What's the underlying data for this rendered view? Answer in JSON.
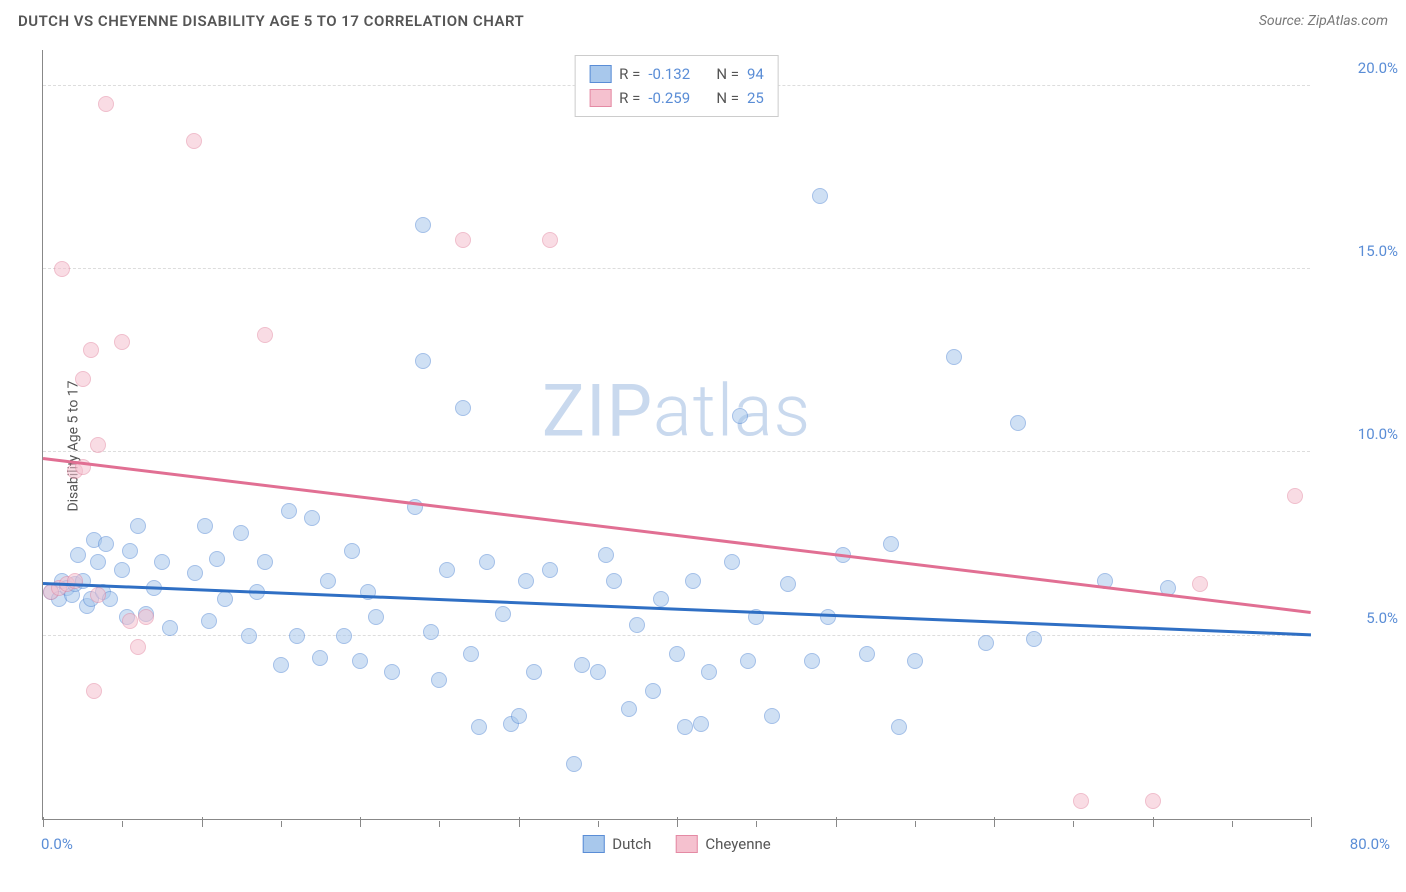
{
  "header": {
    "title": "DUTCH VS CHEYENNE DISABILITY AGE 5 TO 17 CORRELATION CHART",
    "source_prefix": "Source: ",
    "source_name": "ZipAtlas.com"
  },
  "chart": {
    "type": "scatter",
    "ylabel": "Disability Age 5 to 17",
    "watermark_bold": "ZIP",
    "watermark_light": "atlas",
    "background_color": "#ffffff",
    "grid_color": "#dddddd",
    "axis_color": "#888888",
    "xlim": [
      0,
      80
    ],
    "ylim": [
      0,
      21
    ],
    "xticks_major": [
      0,
      10,
      20,
      30,
      40,
      50,
      60,
      70,
      80
    ],
    "xticks_minor": [
      5,
      15,
      25,
      35,
      45,
      55,
      65,
      75
    ],
    "yticks": [
      {
        "value": 5.0,
        "label": "5.0%"
      },
      {
        "value": 10.0,
        "label": "10.0%"
      },
      {
        "value": 15.0,
        "label": "15.0%"
      },
      {
        "value": 20.0,
        "label": "20.0%"
      }
    ],
    "x_origin_label": "0.0%",
    "x_max_label": "80.0%",
    "marker_radius": 8,
    "marker_opacity": 0.55,
    "series": [
      {
        "name": "Dutch",
        "fill": "#a8c8ec",
        "stroke": "#5a8dd6",
        "trend_color": "#2f6fc4",
        "R_label": "R =",
        "R_value": "-0.132",
        "N_label": "N =",
        "N_value": "94",
        "trend": {
          "x1": 0,
          "y1": 6.4,
          "x2": 80,
          "y2": 5.0
        },
        "data": [
          {
            "x": 0.5,
            "y": 6.2
          },
          {
            "x": 1,
            "y": 6.0
          },
          {
            "x": 1.2,
            "y": 6.5
          },
          {
            "x": 1.5,
            "y": 6.3
          },
          {
            "x": 1.8,
            "y": 6.1
          },
          {
            "x": 2.0,
            "y": 6.4
          },
          {
            "x": 2.2,
            "y": 7.2
          },
          {
            "x": 2.5,
            "y": 6.5
          },
          {
            "x": 2.8,
            "y": 5.8
          },
          {
            "x": 3.0,
            "y": 6.0
          },
          {
            "x": 3.2,
            "y": 7.6
          },
          {
            "x": 3.5,
            "y": 7.0
          },
          {
            "x": 3.8,
            "y": 6.2
          },
          {
            "x": 4.0,
            "y": 7.5
          },
          {
            "x": 4.2,
            "y": 6.0
          },
          {
            "x": 5.0,
            "y": 6.8
          },
          {
            "x": 5.3,
            "y": 5.5
          },
          {
            "x": 5.5,
            "y": 7.3
          },
          {
            "x": 6.0,
            "y": 8.0
          },
          {
            "x": 6.5,
            "y": 5.6
          },
          {
            "x": 7.0,
            "y": 6.3
          },
          {
            "x": 7.5,
            "y": 7.0
          },
          {
            "x": 8.0,
            "y": 5.2
          },
          {
            "x": 9.6,
            "y": 6.7
          },
          {
            "x": 10.2,
            "y": 8.0
          },
          {
            "x": 10.5,
            "y": 5.4
          },
          {
            "x": 11.0,
            "y": 7.1
          },
          {
            "x": 11.5,
            "y": 6.0
          },
          {
            "x": 12.5,
            "y": 7.8
          },
          {
            "x": 13.0,
            "y": 5.0
          },
          {
            "x": 13.5,
            "y": 6.2
          },
          {
            "x": 14.0,
            "y": 7.0
          },
          {
            "x": 15.0,
            "y": 4.2
          },
          {
            "x": 15.5,
            "y": 8.4
          },
          {
            "x": 16.0,
            "y": 5.0
          },
          {
            "x": 17.0,
            "y": 8.2
          },
          {
            "x": 17.5,
            "y": 4.4
          },
          {
            "x": 18.0,
            "y": 6.5
          },
          {
            "x": 19.0,
            "y": 5.0
          },
          {
            "x": 19.5,
            "y": 7.3
          },
          {
            "x": 20.0,
            "y": 4.3
          },
          {
            "x": 20.5,
            "y": 6.2
          },
          {
            "x": 21.0,
            "y": 5.5
          },
          {
            "x": 22.0,
            "y": 4.0
          },
          {
            "x": 23.5,
            "y": 8.5
          },
          {
            "x": 24.0,
            "y": 16.2
          },
          {
            "x": 24.0,
            "y": 12.5
          },
          {
            "x": 24.5,
            "y": 5.1
          },
          {
            "x": 25.0,
            "y": 3.8
          },
          {
            "x": 25.5,
            "y": 6.8
          },
          {
            "x": 26.5,
            "y": 11.2
          },
          {
            "x": 27.0,
            "y": 4.5
          },
          {
            "x": 27.5,
            "y": 2.5
          },
          {
            "x": 28.0,
            "y": 7.0
          },
          {
            "x": 29.5,
            "y": 2.6
          },
          {
            "x": 29.0,
            "y": 5.6
          },
          {
            "x": 30.0,
            "y": 2.8
          },
          {
            "x": 30.5,
            "y": 6.5
          },
          {
            "x": 31.0,
            "y": 4.0
          },
          {
            "x": 32.0,
            "y": 6.8
          },
          {
            "x": 33.5,
            "y": 1.5
          },
          {
            "x": 34.0,
            "y": 4.2
          },
          {
            "x": 35.0,
            "y": 4.0
          },
          {
            "x": 35.5,
            "y": 7.2
          },
          {
            "x": 36.0,
            "y": 6.5
          },
          {
            "x": 37.0,
            "y": 3.0
          },
          {
            "x": 37.5,
            "y": 5.3
          },
          {
            "x": 38.5,
            "y": 3.5
          },
          {
            "x": 39.0,
            "y": 6.0
          },
          {
            "x": 40.0,
            "y": 4.5
          },
          {
            "x": 40.5,
            "y": 2.5
          },
          {
            "x": 41.0,
            "y": 6.5
          },
          {
            "x": 41.5,
            "y": 2.6
          },
          {
            "x": 42.0,
            "y": 4.0
          },
          {
            "x": 43.5,
            "y": 7.0
          },
          {
            "x": 44.0,
            "y": 11.0
          },
          {
            "x": 44.5,
            "y": 4.3
          },
          {
            "x": 45.0,
            "y": 5.5
          },
          {
            "x": 46.0,
            "y": 2.8
          },
          {
            "x": 47.0,
            "y": 6.4
          },
          {
            "x": 48.5,
            "y": 4.3
          },
          {
            "x": 49.0,
            "y": 17.0
          },
          {
            "x": 49.5,
            "y": 5.5
          },
          {
            "x": 50.5,
            "y": 7.2
          },
          {
            "x": 52.0,
            "y": 4.5
          },
          {
            "x": 53.5,
            "y": 7.5
          },
          {
            "x": 54.0,
            "y": 2.5
          },
          {
            "x": 55.0,
            "y": 4.3
          },
          {
            "x": 57.5,
            "y": 12.6
          },
          {
            "x": 59.5,
            "y": 4.8
          },
          {
            "x": 61.5,
            "y": 10.8
          },
          {
            "x": 62.5,
            "y": 4.9
          },
          {
            "x": 67.0,
            "y": 6.5
          },
          {
            "x": 71.0,
            "y": 6.3
          }
        ]
      },
      {
        "name": "Cheyenne",
        "fill": "#f5c1cf",
        "stroke": "#e48aa4",
        "trend_color": "#e16f93",
        "R_label": "R =",
        "R_value": "-0.259",
        "N_label": "N =",
        "N_value": "25",
        "trend": {
          "x1": 0,
          "y1": 9.8,
          "x2": 80,
          "y2": 5.6
        },
        "data": [
          {
            "x": 0.5,
            "y": 6.2
          },
          {
            "x": 1.0,
            "y": 6.3
          },
          {
            "x": 1.2,
            "y": 15.0
          },
          {
            "x": 1.5,
            "y": 6.4
          },
          {
            "x": 2.0,
            "y": 9.5
          },
          {
            "x": 2.0,
            "y": 6.5
          },
          {
            "x": 2.5,
            "y": 12.0
          },
          {
            "x": 2.5,
            "y": 9.6
          },
          {
            "x": 3.0,
            "y": 12.8
          },
          {
            "x": 3.2,
            "y": 3.5
          },
          {
            "x": 3.5,
            "y": 10.2
          },
          {
            "x": 3.5,
            "y": 6.1
          },
          {
            "x": 4.0,
            "y": 19.5
          },
          {
            "x": 5.0,
            "y": 13.0
          },
          {
            "x": 5.5,
            "y": 5.4
          },
          {
            "x": 6.0,
            "y": 4.7
          },
          {
            "x": 6.5,
            "y": 5.5
          },
          {
            "x": 9.5,
            "y": 18.5
          },
          {
            "x": 14.0,
            "y": 13.2
          },
          {
            "x": 26.5,
            "y": 15.8
          },
          {
            "x": 32.0,
            "y": 15.8
          },
          {
            "x": 65.5,
            "y": 0.5
          },
          {
            "x": 70.0,
            "y": 0.5
          },
          {
            "x": 73.0,
            "y": 6.4
          },
          {
            "x": 79.0,
            "y": 8.8
          }
        ]
      }
    ],
    "legend_bottom": [
      {
        "label": "Dutch",
        "fill": "#a8c8ec",
        "stroke": "#5a8dd6"
      },
      {
        "label": "Cheyenne",
        "fill": "#f5c1cf",
        "stroke": "#e48aa4"
      }
    ]
  }
}
